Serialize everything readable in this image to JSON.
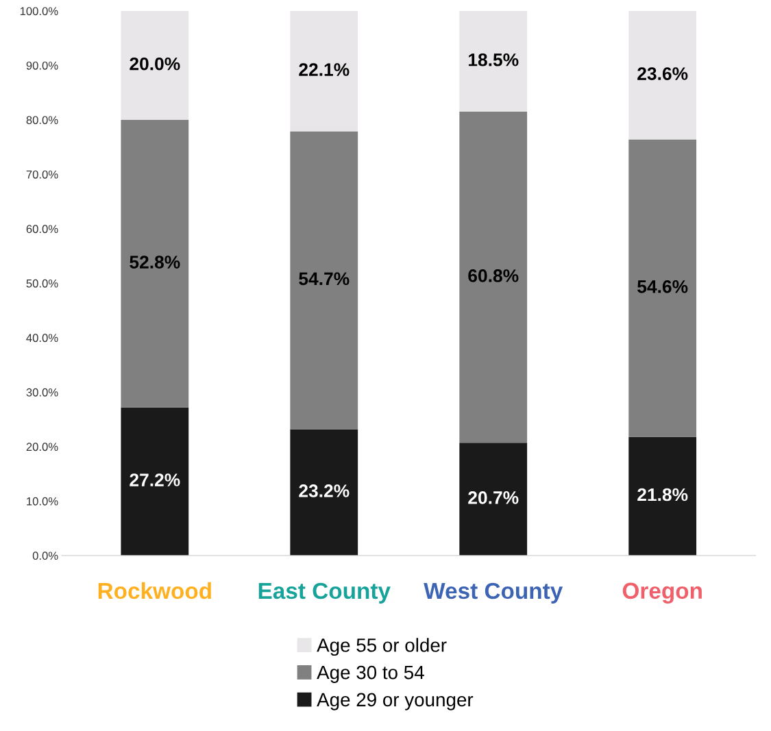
{
  "chart_data": {
    "type": "bar",
    "stacked": true,
    "legend": "bottom",
    "grid": false,
    "categories": [
      "Rockwood",
      "East County",
      "West County",
      "Oregon"
    ],
    "series": [
      {
        "name": "Age 29 or younger",
        "color": "#1a1a1a",
        "values": [
          27.2,
          23.2,
          20.7,
          21.8
        ],
        "value_labels": [
          "27.2%",
          "23.2%",
          "20.7%",
          "21.8%"
        ]
      },
      {
        "name": "Age 30 to 54",
        "color": "#808080",
        "values": [
          52.8,
          54.7,
          60.8,
          54.6
        ],
        "value_labels": [
          "52.8%",
          "54.7%",
          "60.8%",
          "54.6%"
        ]
      },
      {
        "name": "Age 55 or older",
        "color": "#e8e6e8",
        "values": [
          20.0,
          22.1,
          18.5,
          23.6
        ],
        "value_labels": [
          "20.0%",
          "22.1%",
          "18.5%",
          "23.6%"
        ]
      }
    ],
    "ylim": [
      0,
      100
    ],
    "yticks": [
      {
        "value": 0,
        "label": "0.0%"
      },
      {
        "value": 10,
        "label": "10.0%"
      },
      {
        "value": 20,
        "label": "20.0%"
      },
      {
        "value": 30,
        "label": "30.0%"
      },
      {
        "value": 40,
        "label": "40.0%"
      },
      {
        "value": 50,
        "label": "50.0%"
      },
      {
        "value": 60,
        "label": "60.0%"
      },
      {
        "value": 70,
        "label": "70.0%"
      },
      {
        "value": 80,
        "label": "80.0%"
      },
      {
        "value": 90,
        "label": "90.0%"
      },
      {
        "value": 100,
        "label": "100.0%"
      }
    ]
  }
}
